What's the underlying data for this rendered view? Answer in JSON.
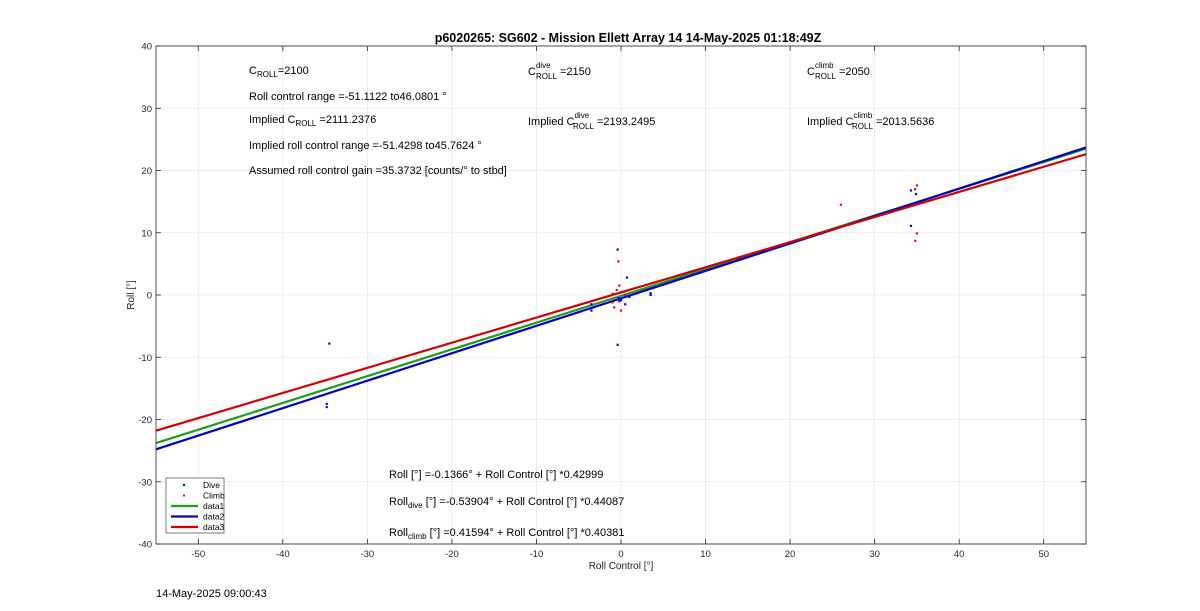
{
  "chart_data": {
    "type": "scatter",
    "title": "p6020265: SG602 - Mission Ellett Array 14 14-May-2025 01:18:49Z",
    "xlabel": "Roll Control [°]",
    "ylabel": "Roll [°]",
    "xlim": [
      -55,
      55
    ],
    "ylim": [
      -40,
      40
    ],
    "xticks": [
      -50,
      -40,
      -30,
      -20,
      -10,
      0,
      10,
      20,
      30,
      40,
      50
    ],
    "yticks": [
      -40,
      -30,
      -20,
      -10,
      0,
      10,
      20,
      30,
      40
    ],
    "grid": true,
    "legend_position": "bottom-left",
    "series": [
      {
        "name": "Dive",
        "kind": "points",
        "color": "#0000ff",
        "x": [
          -34.8,
          -34.8,
          -34.5,
          -3.5,
          -3.5,
          -3.3,
          -0.4,
          -0.4,
          -0.3,
          -0.2,
          0.0,
          0.2,
          0.5,
          0.7,
          1.0,
          3.5,
          3.5,
          34.3,
          34.3,
          34.9
        ],
        "y": [
          -17.5,
          -18.0,
          -7.8,
          -1.5,
          -2.5,
          -2.0,
          7.3,
          -8.0,
          -0.5,
          -1.0,
          -0.8,
          0.5,
          -1.5,
          2.8,
          -0.3,
          0.3,
          0.0,
          16.8,
          11.1,
          16.2
        ]
      },
      {
        "name": "Climb",
        "kind": "points",
        "color": "#ff0000",
        "x": [
          -1.0,
          -1.0,
          -0.8,
          -0.5,
          -0.3,
          -0.2,
          0.0,
          0.3,
          0.5,
          26.0,
          34.8,
          35.0,
          34.8,
          35.0
        ],
        "y": [
          0.2,
          -1.2,
          -2.0,
          0.8,
          5.4,
          1.5,
          -2.5,
          0.5,
          0.0,
          14.5,
          17.0,
          17.6,
          8.7,
          9.9
        ]
      },
      {
        "name": "data1",
        "kind": "line",
        "color": "#1aa11a",
        "intercept": -0.1366,
        "slope": 0.42999
      },
      {
        "name": "data2",
        "kind": "line",
        "color": "#0000c8",
        "intercept": -0.53904,
        "slope": 0.44087
      },
      {
        "name": "data3",
        "kind": "line",
        "color": "#d40000",
        "intercept": 0.41594,
        "slope": 0.40381
      }
    ],
    "annotations": {
      "c_roll": {
        "base": "C",
        "sub": "ROLL",
        "value": "=2100"
      },
      "c_roll_dive": {
        "base": "C",
        "sup": "dive",
        "sub": "ROLL",
        "value": " =2150"
      },
      "c_roll_climb": {
        "base": "C",
        "sup": "climb",
        "sub": "ROLL",
        "value": " =2050"
      },
      "range": "Roll control range =-51.1122 to46.0801 °",
      "implied": {
        "base": "Implied C",
        "sub": "ROLL",
        "value": " =2111.2376"
      },
      "implied_dive": {
        "base": "Implied C",
        "sup": "dive",
        "sub": "ROLL",
        "value": " =2193.2495"
      },
      "implied_climb": {
        "base": "Implied C",
        "sup": "climb",
        "sub": "ROLL",
        "value": " =2013.5636"
      },
      "implied_range": "Implied roll control range =-51.4298 to45.7624 °",
      "gain": "Assumed roll control gain =35.3732 [counts/° to stbd]",
      "fit_all": "Roll [°] =-0.1366° + Roll Control [°] *0.42999",
      "fit_dive": {
        "base": "Roll",
        "sub": "dive",
        "value": " [°] =-0.53904° + Roll Control [°] *0.44087"
      },
      "fit_climb": {
        "base": "Roll",
        "sub": "climb",
        "value": " [°] =0.41594° + Roll Control [°] *0.40381"
      }
    }
  },
  "footer": {
    "timestamp": "14-May-2025 09:00:43"
  }
}
